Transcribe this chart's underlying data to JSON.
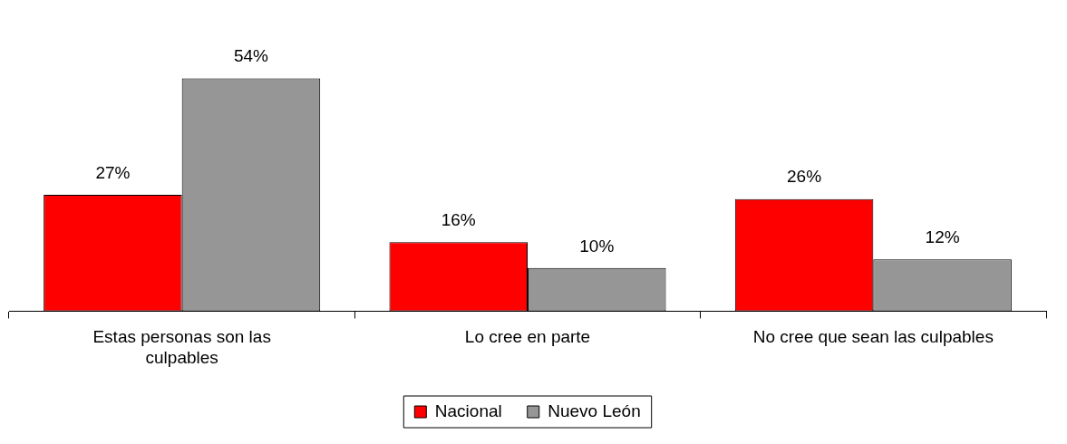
{
  "chart_data": {
    "type": "bar",
    "categories": [
      "Estas personas son las culpables",
      "Lo cree en parte",
      "No cree que sean las culpables"
    ],
    "series": [
      {
        "name": "Nacional",
        "color": "#ff0000",
        "values": [
          27,
          16,
          26
        ],
        "value_labels": [
          "27%",
          "16%",
          "26%"
        ]
      },
      {
        "name": "Nuevo León",
        "color": "#969696",
        "values": [
          54,
          10,
          12
        ],
        "value_labels": [
          "54%",
          "10%",
          "12%"
        ]
      }
    ],
    "legend": "bottom"
  }
}
